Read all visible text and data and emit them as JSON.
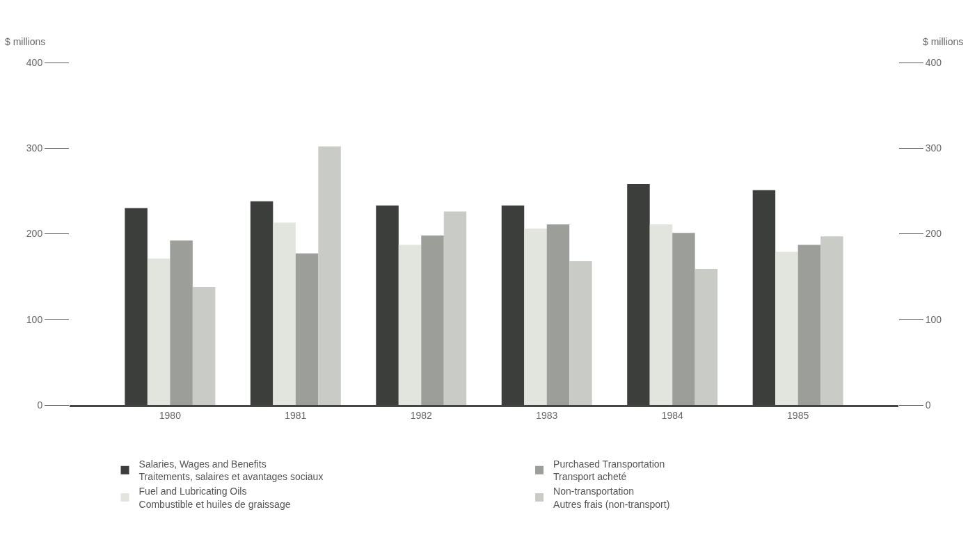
{
  "chart_data": {
    "type": "bar",
    "ylabel": "$ millions",
    "y2label": "$ millions",
    "categories": [
      "1980",
      "1981",
      "1982",
      "1983",
      "1984",
      "1985"
    ],
    "series": [
      {
        "name": "Salaries, Wages and Benefits\nTraitements, salaires et avantages sociaux",
        "color": "#3b3e3b",
        "values": [
          230,
          238,
          233,
          233,
          258,
          251
        ]
      },
      {
        "name": "Fuel and Lubricating Oils\nCombustible et huiles de graissage",
        "color": "#e2e4de",
        "values": [
          171,
          213,
          187,
          206,
          211,
          179
        ]
      },
      {
        "name": "Purchased Transportation\nTransport acheté",
        "color": "#9b9e99",
        "values": [
          192,
          177,
          198,
          211,
          201,
          187
        ]
      },
      {
        "name": "Non-transportation\nAutres frais (non-transport)",
        "color": "#c9ccc6",
        "values": [
          138,
          302,
          226,
          168,
          159,
          197
        ]
      }
    ],
    "ylim": [
      0,
      400
    ],
    "yticks": [
      0,
      100,
      200,
      300,
      400
    ],
    "y2lim": [
      0,
      400
    ],
    "y2ticks": [
      0,
      100,
      200,
      300,
      400
    ],
    "legend": "bottom"
  }
}
